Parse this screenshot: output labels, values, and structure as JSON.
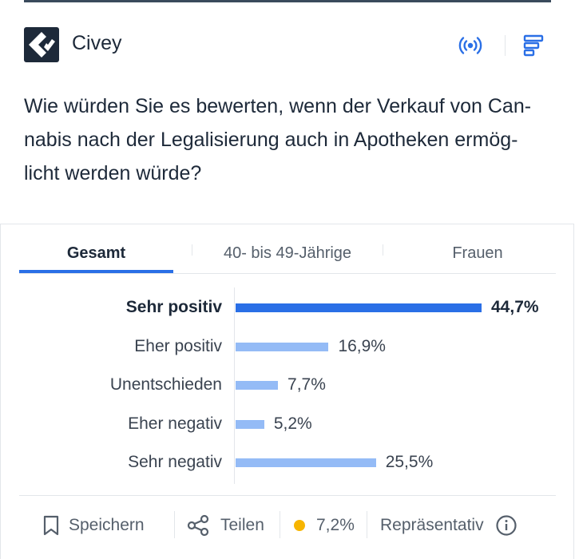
{
  "brand": {
    "name": "Civey"
  },
  "header": {
    "live_icon": "broadcast-icon",
    "menu_icon": "bar-menu-icon"
  },
  "question": "Wie würden Sie es bewerten, wenn der Verkauf von Can-nabis nach der Legalisierung auch in Apotheken ermög-licht werden würde?",
  "question_lines": [
    "Wie würden Sie es bewerten, wenn der Verkauf von Can-",
    "nabis nach der Legalisierung auch in Apotheken ermög-",
    "licht werden würde?"
  ],
  "tabs": [
    {
      "label": "Gesamt",
      "active": true
    },
    {
      "label": "40- bis 49-Jährige",
      "active": false
    },
    {
      "label": "Frauen",
      "active": false
    }
  ],
  "chart_data": {
    "type": "bar",
    "orientation": "horizontal",
    "categories": [
      "Sehr positiv",
      "Eher positiv",
      "Unentschieden",
      "Eher negativ",
      "Sehr negativ"
    ],
    "values": [
      44.7,
      16.9,
      7.7,
      5.2,
      25.5
    ],
    "value_labels": [
      "44,7%",
      "16,9%",
      "7,7%",
      "5,2%",
      "25,5%"
    ],
    "unit": "%",
    "highlighted_category": "Sehr positiv",
    "colors": {
      "highlight": "#2a6fe6",
      "normal": "#94bbf6"
    }
  },
  "footer": {
    "save_label": "Speichern",
    "share_label": "Teilen",
    "error_value": "7,2%",
    "representative_label": "Repräsentativ",
    "status_color": "#f7b500"
  },
  "colors": {
    "accent": "#2a6fe6",
    "text": "#1d2939",
    "muted": "#555f6b"
  }
}
